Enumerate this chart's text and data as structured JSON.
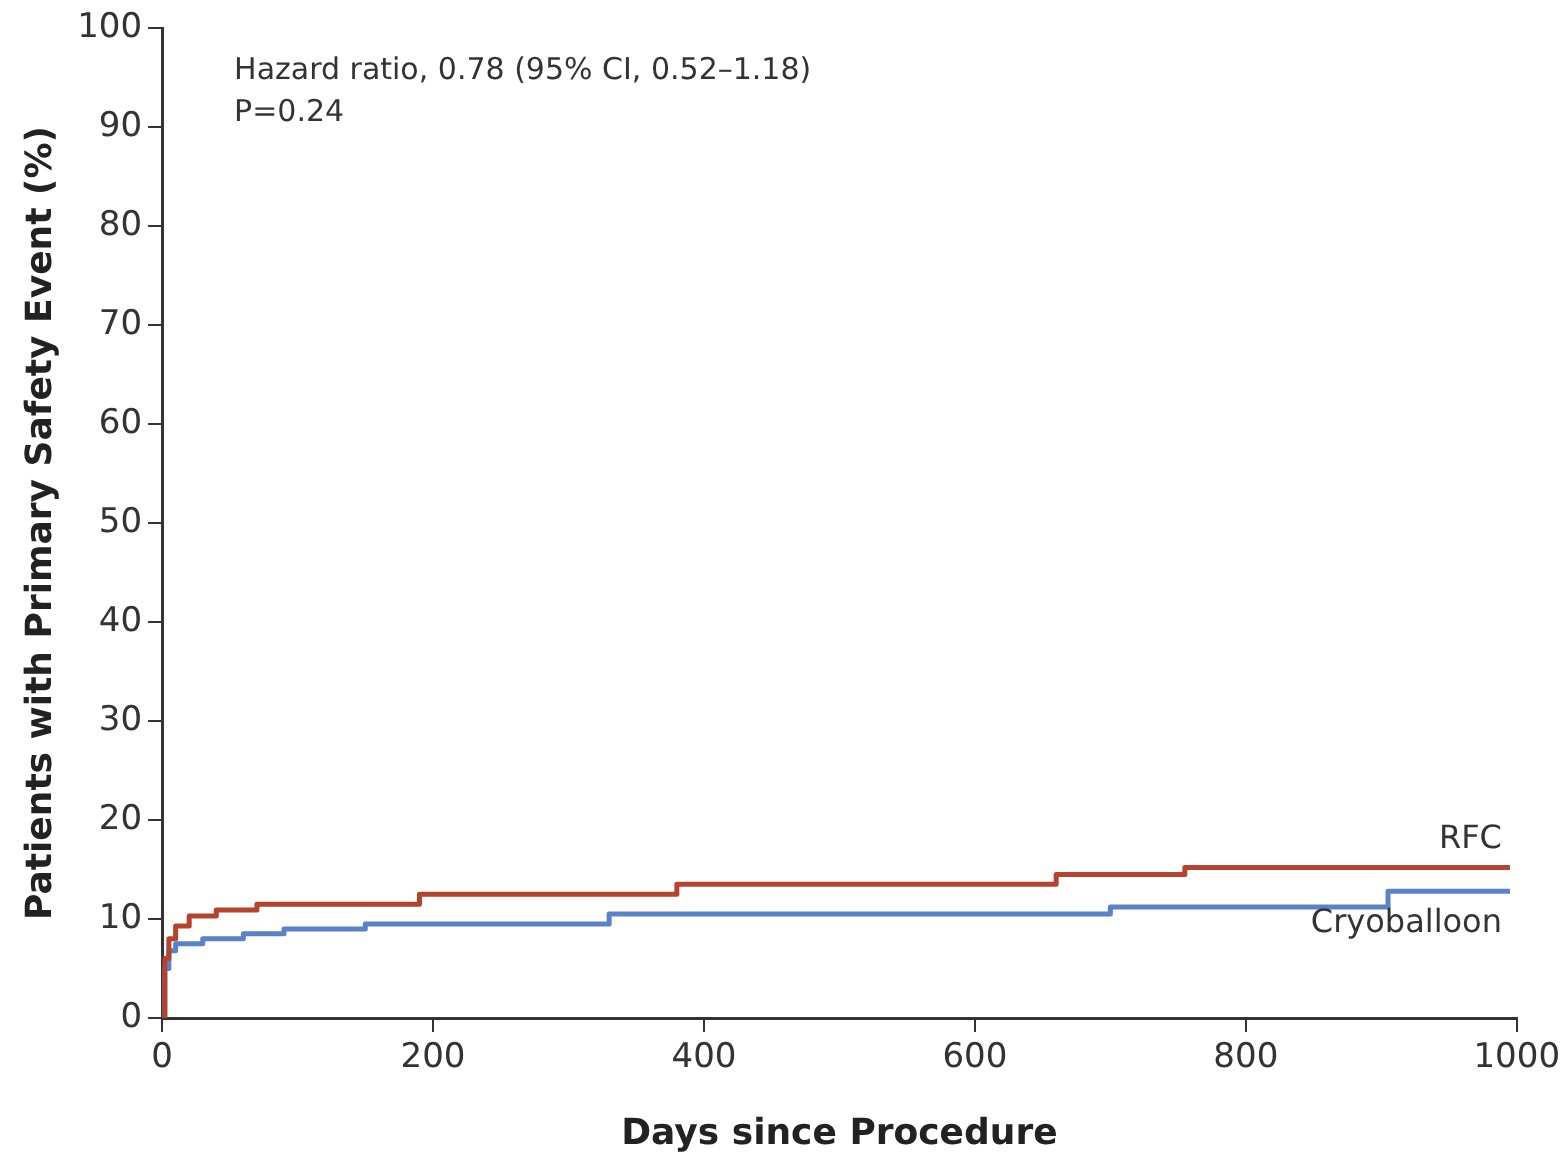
{
  "chart_data": {
    "type": "step",
    "xlabel": "Days since Procedure",
    "ylabel": "Patients with Primary Safety Event (%)",
    "xlim": [
      0,
      1000
    ],
    "ylim": [
      0,
      100
    ],
    "xticks": [
      0,
      200,
      400,
      600,
      800,
      1000
    ],
    "yticks": [
      0,
      10,
      20,
      30,
      40,
      50,
      60,
      70,
      80,
      90,
      100
    ],
    "grid": false,
    "legend": false,
    "marker": "none",
    "line_style": "solid",
    "annotations": [
      "Hazard ratio, 0.78 (95% CI, 0.52–1.18)",
      "P=0.24"
    ],
    "series": [
      {
        "name": "RFC",
        "color": "#b5432e",
        "x": [
          0,
          2,
          5,
          10,
          20,
          40,
          70,
          190,
          380,
          660,
          755,
          995
        ],
        "values": [
          0,
          6,
          8,
          9.3,
          10.3,
          10.9,
          11.5,
          12.5,
          13.5,
          14.5,
          15.2,
          15.2
        ]
      },
      {
        "name": "Cryoballoon",
        "color": "#5a82c8",
        "x": [
          0,
          2,
          5,
          10,
          30,
          60,
          90,
          150,
          330,
          700,
          905,
          995
        ],
        "values": [
          0,
          5,
          6.8,
          7.5,
          8,
          8.5,
          9,
          9.5,
          10.5,
          11.2,
          12.8,
          12.8
        ]
      }
    ]
  }
}
